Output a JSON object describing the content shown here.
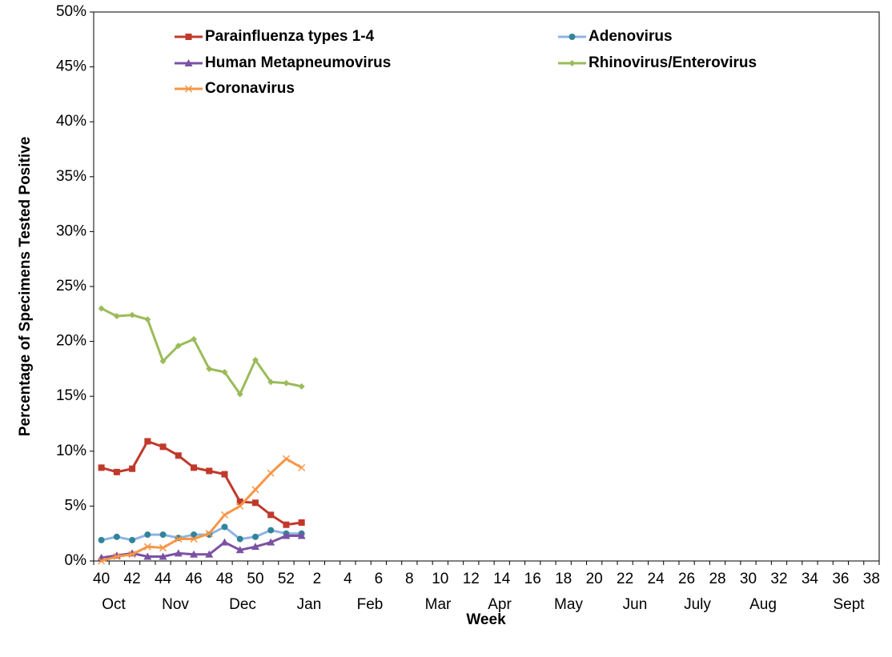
{
  "chart_data": {
    "type": "line",
    "x_label": "Week",
    "y_label": "Percentage of Specimens Tested Positive",
    "categories": [
      "40",
      null,
      "42",
      null,
      "44",
      null,
      "46",
      null,
      "48",
      null,
      "50",
      null,
      "52",
      null,
      "2",
      null,
      "4",
      null,
      "6",
      null,
      "8",
      null,
      "10",
      null,
      "12",
      null,
      "14",
      null,
      "16",
      null,
      "18",
      null,
      "20",
      null,
      "22",
      null,
      "24",
      null,
      "26",
      null,
      "28",
      null,
      "30",
      null,
      "32",
      null,
      "34",
      null,
      "36",
      null,
      "38"
    ],
    "months": [
      "Oct",
      "Nov",
      "Dec",
      "Jan",
      "Feb",
      "Mar",
      "Apr",
      "May",
      "Jun",
      "July",
      "Aug",
      "Sept"
    ],
    "ylim": [
      0,
      50
    ],
    "yticks": [
      {
        "value": 0,
        "label": "0%"
      },
      {
        "value": 5,
        "label": "5%"
      },
      {
        "value": 10,
        "label": "10%"
      },
      {
        "value": 15,
        "label": "15%"
      },
      {
        "value": 20,
        "label": "20%"
      },
      {
        "value": 25,
        "label": "25%"
      },
      {
        "value": 30,
        "label": "30%"
      },
      {
        "value": 35,
        "label": "35%"
      },
      {
        "value": 40,
        "label": "40%"
      },
      {
        "value": 45,
        "label": "45%"
      },
      {
        "value": 50,
        "label": "50%"
      }
    ],
    "grid": false,
    "legend": "top-left",
    "series": [
      {
        "name": "Parainfluenza types 1-4",
        "color": "#c0392b",
        "marker": "square",
        "values": [
          8.5,
          8.1,
          8.4,
          10.9,
          10.4,
          9.6,
          8.5,
          8.2,
          7.9,
          5.4,
          5.3,
          4.2,
          3.3,
          3.5,
          null,
          null,
          null,
          null,
          null,
          null,
          null,
          null,
          null,
          null,
          null,
          null,
          null,
          null,
          null,
          null,
          null,
          null,
          null,
          null,
          null,
          null,
          null,
          null,
          null,
          null,
          null,
          null,
          null,
          null,
          null,
          null,
          null,
          null,
          null,
          null,
          null
        ]
      },
      {
        "name": "Adenovirus",
        "color": "#8eb4e3",
        "marker": "circle",
        "markerColor": "#31849b",
        "values": [
          1.9,
          2.2,
          1.9,
          2.4,
          2.4,
          2.1,
          2.4,
          2.4,
          3.1,
          2.0,
          2.2,
          2.8,
          2.5,
          2.5,
          null,
          null,
          null,
          null,
          null,
          null,
          null,
          null,
          null,
          null,
          null,
          null,
          null,
          null,
          null,
          null,
          null,
          null,
          null,
          null,
          null,
          null,
          null,
          null,
          null,
          null,
          null,
          null,
          null,
          null,
          null,
          null,
          null,
          null,
          null,
          null,
          null
        ]
      },
      {
        "name": "Human Metapneumovirus",
        "color": "#7b52a3",
        "marker": "triangle",
        "values": [
          0.3,
          0.5,
          0.7,
          0.4,
          0.4,
          0.7,
          0.6,
          0.6,
          1.7,
          1.0,
          1.3,
          1.7,
          2.3,
          2.3,
          null,
          null,
          null,
          null,
          null,
          null,
          null,
          null,
          null,
          null,
          null,
          null,
          null,
          null,
          null,
          null,
          null,
          null,
          null,
          null,
          null,
          null,
          null,
          null,
          null,
          null,
          null,
          null,
          null,
          null,
          null,
          null,
          null,
          null,
          null,
          null,
          null
        ]
      },
      {
        "name": "Rhinovirus/Enterovirus",
        "color": "#9bbb59",
        "marker": "diamond",
        "values": [
          23.0,
          22.3,
          22.4,
          22.0,
          18.2,
          19.6,
          20.2,
          17.5,
          17.2,
          15.2,
          18.3,
          16.3,
          16.2,
          15.9,
          null,
          null,
          null,
          null,
          null,
          null,
          null,
          null,
          null,
          null,
          null,
          null,
          null,
          null,
          null,
          null,
          null,
          null,
          null,
          null,
          null,
          null,
          null,
          null,
          null,
          null,
          null,
          null,
          null,
          null,
          null,
          null,
          null,
          null,
          null,
          null,
          null
        ]
      },
      {
        "name": "Coronavirus",
        "color": "#f79646",
        "marker": "x",
        "values": [
          0.0,
          0.4,
          0.6,
          1.3,
          1.2,
          2.0,
          2.0,
          2.5,
          4.2,
          5.0,
          6.5,
          8.0,
          9.3,
          8.5,
          null,
          null,
          null,
          null,
          null,
          null,
          null,
          null,
          null,
          null,
          null,
          null,
          null,
          null,
          null,
          null,
          null,
          null,
          null,
          null,
          null,
          null,
          null,
          null,
          null,
          null,
          null,
          null,
          null,
          null,
          null,
          null,
          null,
          null,
          null,
          null,
          null
        ]
      }
    ]
  }
}
